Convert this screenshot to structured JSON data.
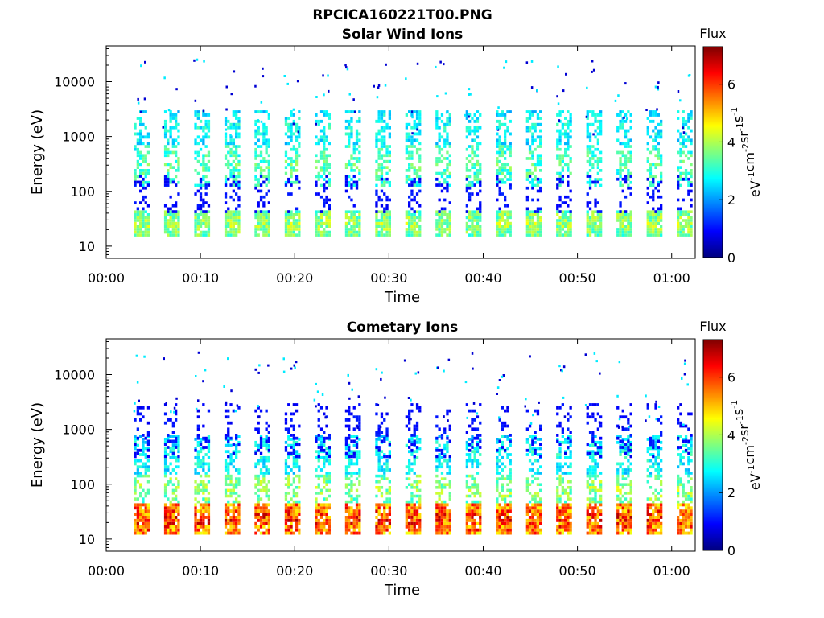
{
  "page_title": "RPCICA160221T00.PNG",
  "colorbar": {
    "title": "Flux",
    "unit_parts": [
      "eV",
      "-1",
      "cm",
      "-2",
      "sr",
      "-1",
      "s",
      "-1"
    ],
    "ticks": [
      "0",
      "2",
      "4",
      "6"
    ],
    "range": [
      0,
      7.3
    ],
    "colormap": [
      "#00007f",
      "#0000ff",
      "#007fff",
      "#00ffff",
      "#7fff7f",
      "#ffff00",
      "#ff7f00",
      "#ff0000",
      "#7f0000"
    ]
  },
  "chart_data": [
    {
      "type": "heatmap",
      "title": "Solar Wind Ions",
      "xlabel": "Time",
      "ylabel": "Energy (eV)",
      "yscale": "log",
      "ylim": [
        6,
        45000
      ],
      "xlim_minutes": [
        0,
        62.5
      ],
      "x_ticks": [
        "00:00",
        "00:10",
        "00:20",
        "00:30",
        "00:40",
        "00:50",
        "01:00"
      ],
      "y_ticks": [
        "10",
        "100",
        "1000",
        "10000"
      ],
      "sweep_start_minutes": [
        3.5,
        6.7,
        9.9,
        13.1,
        16.3,
        19.5,
        22.7,
        25.9,
        29.1,
        32.3,
        35.5,
        38.7,
        41.9,
        45.1,
        48.3,
        51.5,
        54.7,
        57.9,
        61.1
      ],
      "bands": [
        {
          "e_min": 15,
          "e_max": 45,
          "flux": 3.8
        },
        {
          "e_min": 120,
          "e_max": 700,
          "flux": 3.3
        },
        {
          "e_min": 700,
          "e_max": 3000,
          "flux": 2.8
        },
        {
          "e_min": 40,
          "e_max": 200,
          "flux": 1.0
        }
      ]
    },
    {
      "type": "heatmap",
      "title": "Cometary Ions",
      "xlabel": "Time",
      "ylabel": "Energy (eV)",
      "yscale": "log",
      "ylim": [
        6,
        45000
      ],
      "xlim_minutes": [
        0,
        62.5
      ],
      "x_ticks": [
        "00:00",
        "00:10",
        "00:20",
        "00:30",
        "00:40",
        "00:50",
        "01:00"
      ],
      "y_ticks": [
        "10",
        "100",
        "1000",
        "10000"
      ],
      "sweep_start_minutes": [
        3.5,
        6.7,
        9.9,
        13.1,
        16.3,
        19.5,
        22.7,
        25.9,
        29.1,
        32.3,
        35.5,
        38.7,
        41.9,
        45.1,
        48.3,
        51.5,
        54.7,
        57.9,
        61.1
      ],
      "bands": [
        {
          "e_min": 12,
          "e_max": 45,
          "flux": 5.9
        },
        {
          "e_min": 45,
          "e_max": 150,
          "flux": 3.8
        },
        {
          "e_min": 150,
          "e_max": 800,
          "flux": 2.8
        },
        {
          "e_min": 300,
          "e_max": 3000,
          "flux": 1.0
        }
      ]
    }
  ]
}
